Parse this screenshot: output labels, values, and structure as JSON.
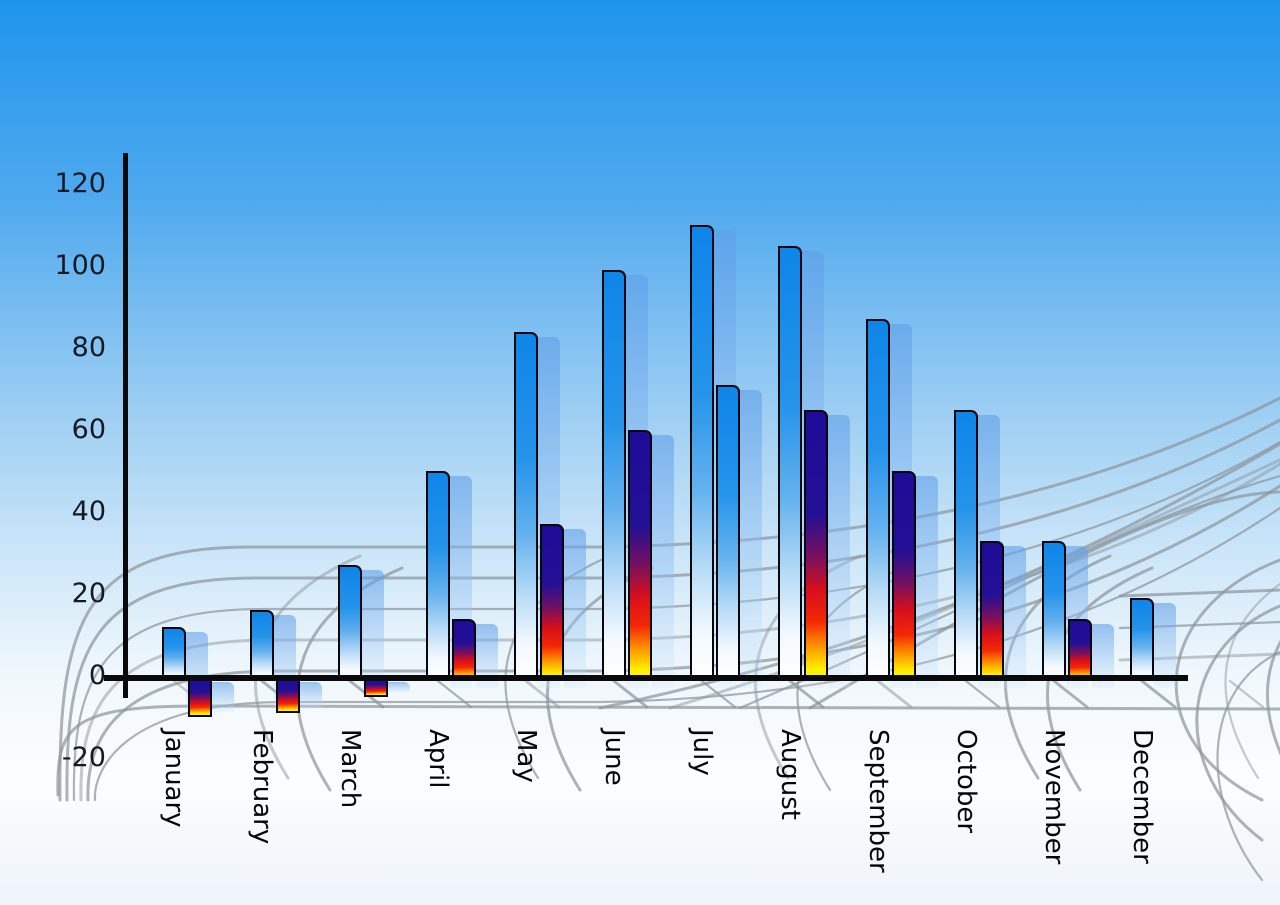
{
  "chart_data": {
    "type": "bar",
    "title": "",
    "xlabel": "",
    "ylabel": "",
    "categories": [
      "January",
      "February",
      "March",
      "April",
      "May",
      "June",
      "July",
      "August",
      "September",
      "October",
      "November",
      "December"
    ],
    "series": [
      {
        "name": "primary-blue-bars",
        "values": [
          12,
          16,
          27,
          50,
          84,
          99,
          110,
          105,
          87,
          65,
          33,
          19
        ]
      },
      {
        "name": "secondary-flame-bars",
        "values": [
          -10,
          -9,
          -5,
          14,
          37,
          60,
          71,
          65,
          50,
          33,
          14,
          null
        ]
      }
    ],
    "second_series_style": [
      "fire",
      "fire",
      "fire",
      "fire",
      "fire",
      "fire",
      "blue",
      "fire",
      "fire",
      "fire",
      "fire",
      null
    ],
    "y_axis": {
      "ticks": [
        120,
        100,
        80,
        60,
        40,
        20,
        0,
        -20
      ]
    },
    "ylim": [
      -20,
      127
    ],
    "legend_position": "none",
    "grid": "decorative gray 3D perspective floor wireframe behind bars",
    "notes": "Every bar casts a pale translucent blue echo offset to its lower-right; December has no secondary bar; July's secondary bar is blue-styled."
  },
  "colors": {
    "sky_top": "#1e95ec",
    "sky_bottom": "#eef4fa",
    "bar_blue": "#0f85e9",
    "bar_blue_fade": "#ffffff",
    "fire_top_navy": "#1e0c98",
    "fire_mid_red": "#f32706",
    "fire_bottom_yellow": "#fff200",
    "echo_blue": "#a9cdf3",
    "axis_black": "#0a0a0c",
    "grid_gray": "#8e959c",
    "label_color": "#141923"
  }
}
